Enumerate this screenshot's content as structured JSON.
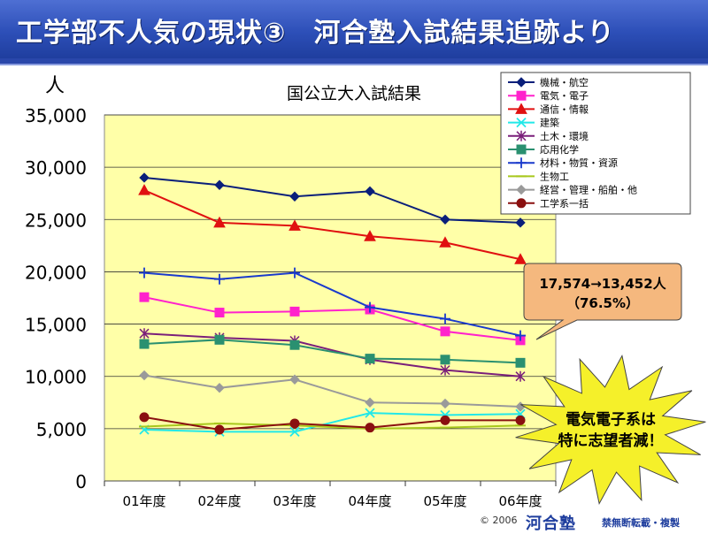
{
  "slide": {
    "title": "工学部不人気の現状③　河合塾入試結果追跡より",
    "copyright": "© 2006",
    "logo": "河合塾",
    "notice": "禁無断転載・複製"
  },
  "chart_data": {
    "type": "line",
    "title": "国公立大入試結果",
    "ylabel": "人",
    "xlabel": "",
    "ylim": [
      0,
      35000
    ],
    "ytick_labels": [
      "0",
      "5,000",
      "10,000",
      "15,000",
      "20,000",
      "25,000",
      "30,000",
      "35,000"
    ],
    "categories": [
      "01年度",
      "02年度",
      "03年度",
      "04年度",
      "05年度",
      "06年度"
    ],
    "grid": true,
    "legend_position": "top-right",
    "series": [
      {
        "name": "機械・航空",
        "color": "#0a1f7a",
        "marker": "diamond",
        "values": [
          29000,
          28300,
          27200,
          27700,
          25000,
          24700
        ]
      },
      {
        "name": "電気・電子",
        "color": "#ff22cc",
        "marker": "square",
        "values": [
          17574,
          16100,
          16200,
          16400,
          14300,
          13452
        ]
      },
      {
        "name": "通信・情報",
        "color": "#e01010",
        "marker": "triangle",
        "values": [
          27800,
          24700,
          24400,
          23400,
          22800,
          21200
        ]
      },
      {
        "name": "建築",
        "color": "#22e8e8",
        "marker": "x",
        "values": [
          4900,
          4700,
          4700,
          6500,
          6300,
          6400
        ]
      },
      {
        "name": "土木・環境",
        "color": "#7a1f7a",
        "marker": "star",
        "values": [
          14100,
          13700,
          13400,
          11600,
          10600,
          10000
        ]
      },
      {
        "name": "応用化学",
        "color": "#2a9070",
        "marker": "square",
        "values": [
          13100,
          13500,
          13000,
          11700,
          11600,
          11300
        ]
      },
      {
        "name": "材料・物質・資源",
        "color": "#1a3acc",
        "marker": "plus",
        "values": [
          19900,
          19300,
          19900,
          16600,
          15500,
          13900
        ]
      },
      {
        "name": "生物工",
        "color": "#a8c81c",
        "marker": "line",
        "values": [
          5200,
          5500,
          5300,
          5000,
          5100,
          5300
        ]
      },
      {
        "name": "経営・管理・船舶・他",
        "color": "#9a9a9a",
        "marker": "diamond",
        "values": [
          10100,
          8900,
          9700,
          7500,
          7400,
          7100
        ]
      },
      {
        "name": "工学系一括",
        "color": "#8a1010",
        "marker": "circle",
        "values": [
          6100,
          4900,
          5500,
          5100,
          5800,
          5800
        ]
      }
    ],
    "annotations": [
      {
        "text_lines": [
          "17,574→13,452人",
          "（76.5%）"
        ],
        "shape": "callout"
      },
      {
        "text_lines": [
          "電気電子系は",
          "特に志望者減！"
        ],
        "shape": "burst"
      }
    ],
    "colors": {
      "plot_bg": "#ffffa8",
      "callout_fill": "#f5b87e",
      "burst_fill": "#f5f02a"
    }
  }
}
